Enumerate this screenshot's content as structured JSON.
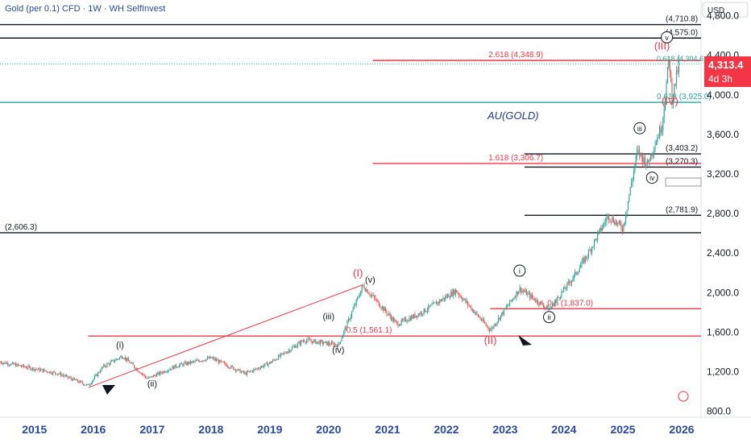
{
  "header": {
    "symbol_title": "Gold (per 0.1) CFD · 1W · WH SelfInvest",
    "currency": "USD"
  },
  "price_badge": {
    "price": "4,313.4",
    "countdown": "4d 3h",
    "color": "#f23645"
  },
  "chart_data": {
    "type": "candlestick",
    "x_axis": {
      "type": "date",
      "tick_labels": [
        "2015",
        "2016",
        "2017",
        "2018",
        "2019",
        "2020",
        "2021",
        "2022",
        "2023",
        "2024",
        "2025",
        "2026"
      ],
      "range": [
        "2014-06-01",
        "2026-05-01"
      ]
    },
    "y_axis": {
      "position": "right",
      "ticks": [
        800,
        1200,
        1600,
        2000,
        2400,
        2800,
        3200,
        3600,
        4000,
        4400,
        4800
      ],
      "tick_labels": [
        "800.0",
        "1,200.0",
        "1,600.0",
        "2,000.0",
        "2,400.0",
        "2,800.0",
        "3,200.0",
        "3,600.0",
        "4,000.0",
        "4,400.0",
        "4,800.0"
      ],
      "range": [
        740,
        4960
      ]
    },
    "price_path": [
      {
        "date": "2014-06-01",
        "price": 1300
      },
      {
        "date": "2014-12-01",
        "price": 1240
      },
      {
        "date": "2015-06-01",
        "price": 1180
      },
      {
        "date": "2015-12-01",
        "price": 1060
      },
      {
        "date": "2016-03-01",
        "price": 1250
      },
      {
        "date": "2016-07-01",
        "price": 1360
      },
      {
        "date": "2016-12-01",
        "price": 1130
      },
      {
        "date": "2017-06-01",
        "price": 1260
      },
      {
        "date": "2018-01-01",
        "price": 1340
      },
      {
        "date": "2018-08-01",
        "price": 1180
      },
      {
        "date": "2019-01-01",
        "price": 1290
      },
      {
        "date": "2019-08-01",
        "price": 1520
      },
      {
        "date": "2020-03-01",
        "price": 1470
      },
      {
        "date": "2020-08-01",
        "price": 2070
      },
      {
        "date": "2021-03-01",
        "price": 1680
      },
      {
        "date": "2021-08-01",
        "price": 1800
      },
      {
        "date": "2022-03-01",
        "price": 2020
      },
      {
        "date": "2022-10-01",
        "price": 1620
      },
      {
        "date": "2023-04-01",
        "price": 2040
      },
      {
        "date": "2023-10-01",
        "price": 1830
      },
      {
        "date": "2024-03-01",
        "price": 2160
      },
      {
        "date": "2024-06-01",
        "price": 2400
      },
      {
        "date": "2024-10-01",
        "price": 2780
      },
      {
        "date": "2025-01-01",
        "price": 2650
      },
      {
        "date": "2025-04-01",
        "price": 3430
      },
      {
        "date": "2025-06-01",
        "price": 3300
      },
      {
        "date": "2025-09-01",
        "price": 3700
      },
      {
        "date": "2025-10-15",
        "price": 4380
      },
      {
        "date": "2025-11-01",
        "price": 3950
      },
      {
        "date": "2025-12-15",
        "price": 4313.4
      }
    ],
    "horizontal_levels": [
      {
        "price": 4710.8,
        "label": "(4,710.8)",
        "color": "#131722",
        "x_start": "2014-06-01"
      },
      {
        "price": 4575.0,
        "label": "(4,575.0)",
        "color": "#131722",
        "x_start": "2014-06-01"
      },
      {
        "price": 4348.9,
        "label": "2.618 (4,348.9)",
        "color": "#f23645",
        "x_start": "2020-10-01"
      },
      {
        "price": 3925.0,
        "label": "0.618 (3,925.0)",
        "color": "#26a69a",
        "x_start": "2014-06-01"
      },
      {
        "price": 3403.2,
        "label": "(3,403.2)",
        "color": "#131722",
        "x_start": "2023-05-01"
      },
      {
        "price": 3306.7,
        "label": "1.618 (3,306.7)",
        "color": "#f23645",
        "x_start": "2020-10-01"
      },
      {
        "price": 3270.3,
        "label": "(3,270.3)",
        "color": "#131722",
        "x_start": "2023-05-01"
      },
      {
        "price": 2781.9,
        "label": "(2,781.9)",
        "color": "#131722",
        "x_start": "2023-05-01"
      },
      {
        "price": 2606.3,
        "label": "(2,606.3)",
        "color": "#131722",
        "x_start": "2014-06-01"
      },
      {
        "price": 1837.0,
        "label": "0.5 (1,837.0)",
        "color": "#f23645",
        "x_start": "2022-10-01"
      },
      {
        "price": 1561.1,
        "label": "0.5 (1,561.1)",
        "color": "#f23645",
        "x_start": "2015-12-01"
      }
    ],
    "top_fib_label": "0.618 (4,304.6)",
    "trendline": {
      "from": {
        "date": "2015-12-01",
        "price": 1040
      },
      "to": {
        "date": "2020-08-01",
        "price": 2080
      },
      "color": "#f23645"
    },
    "wave_labels": [
      {
        "text": "(I)",
        "date": "2020-07-01",
        "price": 2160,
        "color": "#f23645"
      },
      {
        "text": "(II)",
        "date": "2022-10-01",
        "price": 1480,
        "color": "#f23645"
      },
      {
        "text": "(III)",
        "date": "2025-09-01",
        "price": 4460,
        "color": "#f23645"
      },
      {
        "text": "(IV)",
        "date": "2025-10-20",
        "price": 3900,
        "color": "#f23645"
      },
      {
        "text": "(i)",
        "date": "2016-06-15",
        "price": 1440,
        "color": "#131722"
      },
      {
        "text": "(ii)",
        "date": "2017-01-01",
        "price": 1050,
        "color": "#131722"
      },
      {
        "text": "(iii)",
        "date": "2020-01-01",
        "price": 1730,
        "color": "#131722"
      },
      {
        "text": "(iv)",
        "date": "2020-03-01",
        "price": 1390,
        "color": "#131722"
      },
      {
        "text": "(v)",
        "date": "2020-09-15",
        "price": 2100,
        "color": "#131722"
      },
      {
        "text": "i",
        "date": "2023-04-01",
        "price": 2190,
        "color": "#131722",
        "circled": true
      },
      {
        "text": "ii",
        "date": "2023-10-01",
        "price": 1720,
        "color": "#131722",
        "circled": true
      },
      {
        "text": "iii",
        "date": "2025-04-15",
        "price": 3630,
        "color": "#131722",
        "circled": true
      },
      {
        "text": "iv",
        "date": "2025-07-01",
        "price": 3130,
        "color": "#131722",
        "circled": true
      },
      {
        "text": "v",
        "date": "2025-10-01",
        "price": 4550,
        "color": "#131722",
        "circled": true
      }
    ],
    "chart_annotation": "AU(GOLD)",
    "colors": {
      "up": "#26a69a",
      "down": "#ef5350",
      "fib_red": "#f23645",
      "teal": "#26a69a"
    }
  }
}
